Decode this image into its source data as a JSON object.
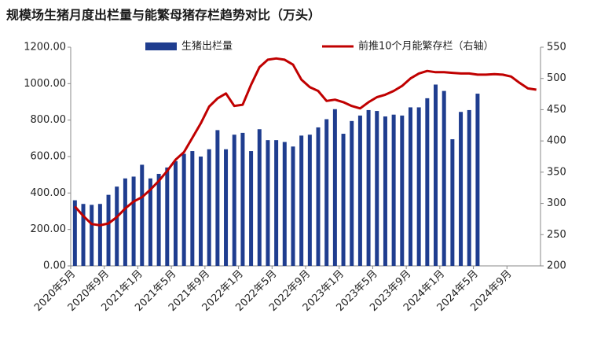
{
  "chart_data": {
    "type": "bar_line",
    "title": "规模场生猪月度出栏量与能繁母猪存栏趋势对比（万头）",
    "categories": [
      "2020年5月",
      null,
      null,
      null,
      "2020年9月",
      null,
      null,
      null,
      "2021年1月",
      null,
      null,
      null,
      "2021年5月",
      null,
      null,
      null,
      "2021年9月",
      null,
      null,
      null,
      "2022年1月",
      null,
      null,
      null,
      "2022年5月",
      null,
      null,
      null,
      "2022年9月",
      null,
      null,
      null,
      "2023年1月",
      null,
      null,
      null,
      "2023年5月",
      null,
      null,
      null,
      "2023年9月",
      null,
      null,
      null,
      "2024年1月",
      null,
      null,
      null,
      "2024年5月",
      null,
      null,
      null,
      "2024年9月",
      null,
      null,
      null
    ],
    "series": [
      {
        "name": "生猪出栏量",
        "type": "bar",
        "color": "#1f3d8f",
        "values": [
          360,
          340,
          335,
          340,
          390,
          435,
          480,
          490,
          555,
          480,
          505,
          540,
          575,
          615,
          630,
          600,
          640,
          745,
          640,
          720,
          730,
          630,
          750,
          690,
          690,
          680,
          655,
          715,
          720,
          760,
          805,
          860,
          725,
          795,
          825,
          855,
          850,
          820,
          830,
          825,
          870,
          870,
          920,
          995,
          960,
          695,
          845,
          855,
          945,
          null,
          null,
          null,
          null,
          null,
          null,
          null
        ]
      },
      {
        "name": "前推10个月能繁存栏（右轴）",
        "type": "line",
        "axis": "y2",
        "color": "#c00000",
        "values": [
          295,
          280,
          267,
          265,
          268,
          278,
          292,
          303,
          310,
          322,
          336,
          352,
          370,
          382,
          405,
          428,
          455,
          468,
          476,
          456,
          458,
          490,
          518,
          530,
          532,
          530,
          522,
          498,
          486,
          480,
          464,
          466,
          462,
          456,
          452,
          462,
          470,
          474,
          480,
          488,
          500,
          508,
          512,
          510,
          510,
          509,
          508,
          508,
          506,
          506,
          507,
          506,
          503,
          493,
          484,
          482
        ]
      }
    ],
    "ylim": [
      0,
      1200
    ],
    "yticks": [
      {
        "value": 0,
        "label": "0.00"
      },
      {
        "value": 200,
        "label": "200.00"
      },
      {
        "value": 400,
        "label": "400.00"
      },
      {
        "value": 600,
        "label": "600.00"
      },
      {
        "value": 800,
        "label": "800.00"
      },
      {
        "value": 1000,
        "label": "1000.00"
      },
      {
        "value": 1200,
        "label": "1200.00"
      }
    ],
    "y2lim": [
      200,
      550
    ],
    "y2ticks": [
      200,
      250,
      300,
      350,
      400,
      450,
      500,
      550
    ],
    "legend": "top"
  }
}
